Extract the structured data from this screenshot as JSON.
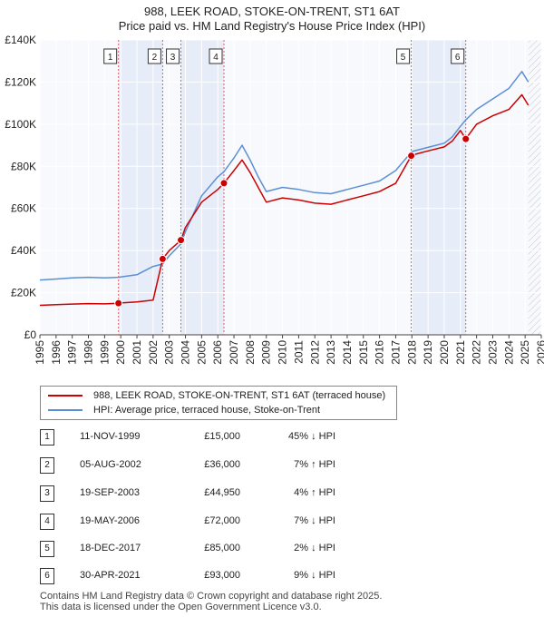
{
  "title_line1": "988, LEEK ROAD, STOKE-ON-TRENT, ST1 6AT",
  "title_line2": "Price paid vs. HM Land Registry's House Price Index (HPI)",
  "legend": {
    "red_label": "988, LEEK ROAD, STOKE-ON-TRENT, ST1 6AT (terraced house)",
    "blue_label": "HPI: Average price, terraced house, Stoke-on-Trent",
    "red_color": "#cc0000",
    "blue_color": "#5b8fd4"
  },
  "sales": [
    {
      "num": "1",
      "date": "11-NOV-1999",
      "price": "£15,000",
      "hpi": "45% ↓ HPI"
    },
    {
      "num": "2",
      "date": "05-AUG-2002",
      "price": "£36,000",
      "hpi": "7% ↑ HPI"
    },
    {
      "num": "3",
      "date": "19-SEP-2003",
      "price": "£44,950",
      "hpi": "4% ↑ HPI"
    },
    {
      "num": "4",
      "date": "19-MAY-2006",
      "price": "£72,000",
      "hpi": "7% ↓ HPI"
    },
    {
      "num": "5",
      "date": "18-DEC-2017",
      "price": "£85,000",
      "hpi": "2% ↓ HPI"
    },
    {
      "num": "6",
      "date": "30-APR-2021",
      "price": "£93,000",
      "hpi": "9% ↓ HPI"
    }
  ],
  "footer_line1": "Contains HM Land Registry data © Crown copyright and database right 2025.",
  "footer_line2": "This data is licensed under the Open Government Licence v3.0.",
  "chart_data": {
    "type": "line",
    "title": "Price paid vs. HM Land Registry's House Price Index (HPI)",
    "xlim": [
      1995,
      2026
    ],
    "ylim": [
      0,
      140000
    ],
    "x_ticks": [
      1995,
      1996,
      1997,
      1998,
      1999,
      2000,
      2001,
      2002,
      2003,
      2004,
      2005,
      2006,
      2007,
      2008,
      2009,
      2010,
      2011,
      2012,
      2013,
      2014,
      2015,
      2016,
      2017,
      2018,
      2019,
      2020,
      2021,
      2022,
      2023,
      2024,
      2025,
      2026
    ],
    "y_ticks": [
      0,
      20000,
      40000,
      60000,
      80000,
      100000,
      120000,
      140000
    ],
    "y_tick_labels": [
      "£0",
      "£20K",
      "£40K",
      "£60K",
      "£80K",
      "£100K",
      "£120K",
      "£140K"
    ],
    "grid": true,
    "future_from": 2025.2,
    "shaded_spans": [
      [
        1999.86,
        2002.59
      ],
      [
        2003.72,
        2006.38
      ],
      [
        2017.96,
        2021.33
      ]
    ],
    "sale_points": [
      {
        "label": "1",
        "x": 1999.86,
        "y": 15000
      },
      {
        "label": "2",
        "x": 2002.59,
        "y": 36000
      },
      {
        "label": "3",
        "x": 2003.72,
        "y": 44950
      },
      {
        "label": "4",
        "x": 2006.38,
        "y": 72000
      },
      {
        "label": "5",
        "x": 2017.96,
        "y": 85000
      },
      {
        "label": "6",
        "x": 2021.33,
        "y": 93000
      }
    ],
    "series": [
      {
        "name": "HPI: Average price, terraced house, Stoke-on-Trent",
        "color": "#5b8fd4",
        "x": [
          1995,
          1996,
          1997,
          1998,
          1999,
          1999.86,
          2000,
          2001,
          2002,
          2002.59,
          2003,
          2003.72,
          2004,
          2005,
          2006,
          2006.38,
          2007,
          2007.5,
          2008,
          2008.5,
          2009,
          2010,
          2011,
          2012,
          2013,
          2014,
          2015,
          2016,
          2017,
          2017.96,
          2018,
          2019,
          2020,
          2020.5,
          2021,
          2021.33,
          2022,
          2023,
          2024,
          2024.8,
          2025.2
        ],
        "y": [
          26000,
          26500,
          27000,
          27300,
          27000,
          27300,
          27500,
          28500,
          32500,
          33600,
          37500,
          43200,
          49000,
          66000,
          75000,
          77400,
          84000,
          90000,
          83000,
          75000,
          68000,
          70000,
          69000,
          67500,
          67000,
          69000,
          71000,
          73000,
          78000,
          86700,
          87000,
          89000,
          91000,
          94000,
          99000,
          102000,
          107000,
          112000,
          117000,
          125000,
          120000
        ]
      },
      {
        "name": "988, LEEK ROAD, STOKE-ON-TRENT, ST1 6AT (terraced house)",
        "color": "#cc0000",
        "x": [
          1995,
          1996,
          1997,
          1998,
          1999,
          1999.86,
          2000,
          2001,
          2002,
          2002.59,
          2003,
          2003.72,
          2004,
          2005,
          2006,
          2006.38,
          2007,
          2007.5,
          2008,
          2008.5,
          2009,
          2010,
          2011,
          2012,
          2013,
          2014,
          2015,
          2016,
          2017,
          2017.96,
          2018,
          2019,
          2020,
          2020.5,
          2021,
          2021.33,
          2022,
          2023,
          2024,
          2024.8,
          2025.2
        ],
        "y": [
          14000,
          14300,
          14600,
          14800,
          14700,
          15000,
          15100,
          15600,
          16500,
          36000,
          40000,
          44950,
          51000,
          63000,
          69000,
          72000,
          78000,
          83000,
          77000,
          70000,
          63000,
          65000,
          64000,
          62500,
          62000,
          64000,
          66000,
          68000,
          72000,
          85000,
          85300,
          87300,
          89200,
          92000,
          97000,
          93000,
          100000,
          104000,
          107000,
          114000,
          109000
        ]
      }
    ]
  }
}
